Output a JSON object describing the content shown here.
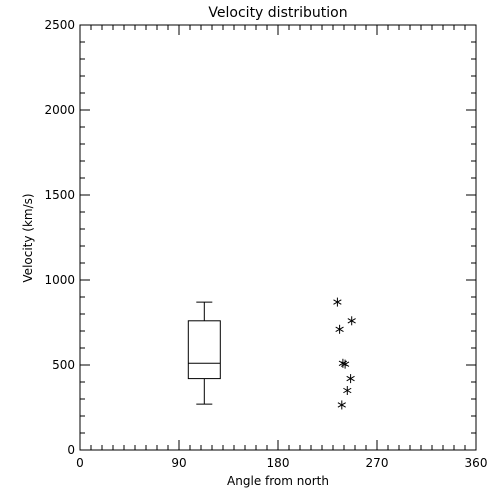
{
  "chart_data": {
    "type": "scatter",
    "title": "Velocity distribution",
    "xlabel": "Angle from north",
    "ylabel": "Velocity (km/s)",
    "xlim": [
      0,
      360
    ],
    "ylim": [
      0,
      2500
    ],
    "xticks": [
      0,
      90,
      180,
      270,
      360
    ],
    "xtick_labels": [
      "0",
      "90",
      "180",
      "270",
      "360"
    ],
    "yticks": [
      0,
      500,
      1000,
      1500,
      2000,
      2500
    ],
    "ytick_labels": [
      "0",
      "500",
      "1000",
      "1500",
      "2000",
      "2500"
    ],
    "grid": false,
    "legend": "none",
    "box": {
      "x": 113,
      "min": 270,
      "q1": 420,
      "median": 510,
      "q3": 760,
      "max": 870
    },
    "points": [
      {
        "x": 234,
        "y": 870
      },
      {
        "x": 236,
        "y": 710
      },
      {
        "x": 247,
        "y": 760
      },
      {
        "x": 239,
        "y": 510
      },
      {
        "x": 241,
        "y": 505
      },
      {
        "x": 246,
        "y": 420
      },
      {
        "x": 243,
        "y": 350
      },
      {
        "x": 238,
        "y": 265
      }
    ]
  }
}
